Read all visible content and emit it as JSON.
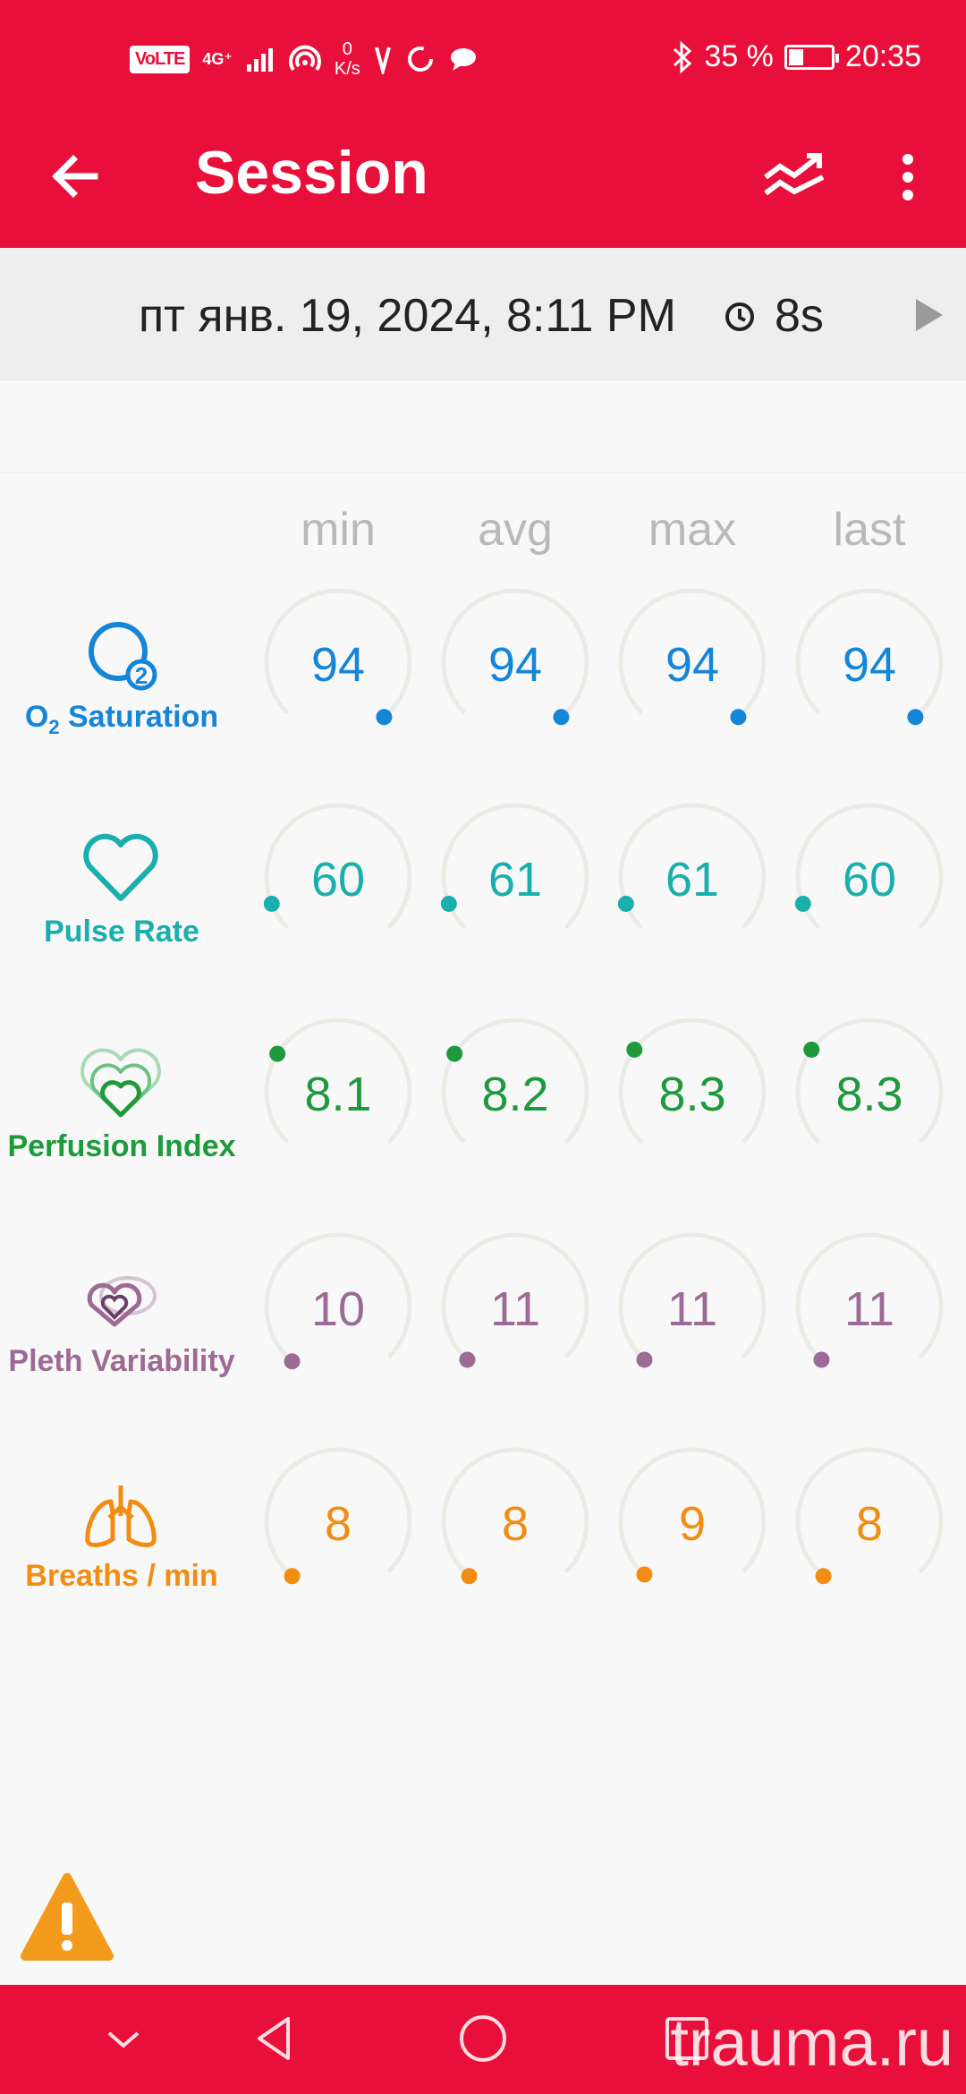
{
  "status_bar": {
    "volte": "VoLTE",
    "net": "4G⁺",
    "speed_value": "0",
    "speed_unit": "K/s",
    "battery": "35 %",
    "battery_level": 0.35,
    "time": "20:35"
  },
  "app_bar": {
    "title": "Session",
    "back_icon": "arrow-left-icon",
    "trend_icon": "trend-chart-icon",
    "more_icon": "more-vert-icon"
  },
  "session": {
    "date": "пт янв. 19, 2024, 8:11 PM",
    "duration": "8s"
  },
  "columns": [
    "min",
    "avg",
    "max",
    "last"
  ],
  "metrics": [
    {
      "key": "spo2",
      "label_main": "O",
      "label_sub": "2",
      "label_rest": " Saturation",
      "color": "#1585d8",
      "values": [
        "94",
        "94",
        "94",
        "94"
      ],
      "dot_angles": [
        140,
        140,
        140,
        140
      ]
    },
    {
      "key": "pr",
      "label": "Pulse Rate",
      "color": "#1aaead",
      "values": [
        "60",
        "61",
        "61",
        "60"
      ],
      "dot_angles": [
        -112,
        -112,
        -112,
        -112
      ]
    },
    {
      "key": "pi",
      "label": "Perfusion Index",
      "color": "#1e9a3c",
      "values": [
        "8.1",
        "8.2",
        "8.3",
        "8.3"
      ],
      "dot_angles": [
        -58,
        -58,
        -54,
        -54
      ]
    },
    {
      "key": "pvi",
      "label": "Pleth Variability",
      "color": "#9c6a94",
      "values": [
        "10",
        "11",
        "11",
        "11"
      ],
      "dot_angles": [
        -140,
        -138,
        -138,
        -138
      ]
    },
    {
      "key": "rr",
      "label": "Breaths / min",
      "color": "#f28c12",
      "values": [
        "8",
        "8",
        "9",
        "8"
      ],
      "dot_angles": [
        -140,
        -140,
        -138,
        -140
      ]
    }
  ],
  "watermark": "trauma.ru"
}
